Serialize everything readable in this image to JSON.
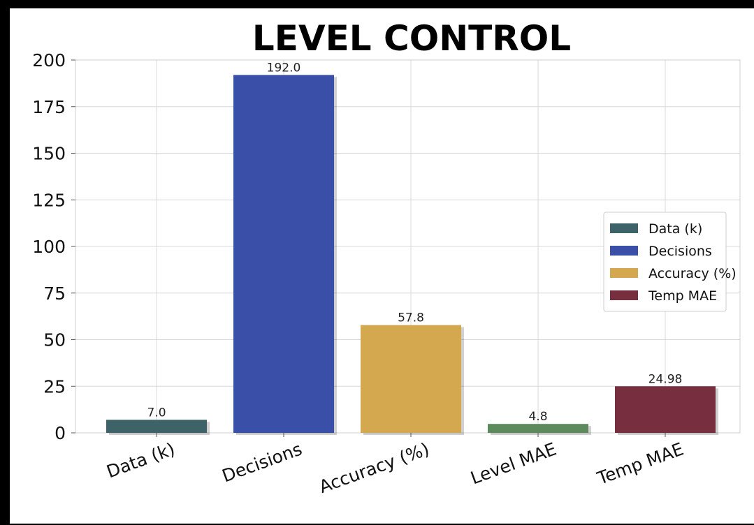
{
  "chart_data": {
    "type": "bar",
    "title": "LEVEL CONTROL",
    "xlabel": "",
    "ylabel": "",
    "categories": [
      "Data (k)",
      "Decisions",
      "Accuracy (%)",
      "Level MAE",
      "Temp MAE"
    ],
    "values": [
      7.0,
      192.0,
      57.8,
      4.8,
      24.98
    ],
    "value_labels": [
      "7.0",
      "192.0",
      "57.8",
      "4.8",
      "24.98"
    ],
    "colors": [
      "#3d6268",
      "#3a4fa8",
      "#d4a84e",
      "#5d8a5c",
      "#772f40"
    ],
    "ylim": [
      0,
      200
    ],
    "yticks": [
      0,
      25,
      50,
      75,
      100,
      125,
      150,
      175,
      200
    ],
    "grid": true,
    "legend": {
      "placement": "right",
      "entries": [
        {
          "label": "Data (k)",
          "color": "#3d6268"
        },
        {
          "label": "Decisions",
          "color": "#3a4fa8"
        },
        {
          "label": "Accuracy (%)",
          "color": "#d4a84e"
        },
        {
          "label": "Temp MAE",
          "color": "#772f40"
        }
      ]
    }
  }
}
